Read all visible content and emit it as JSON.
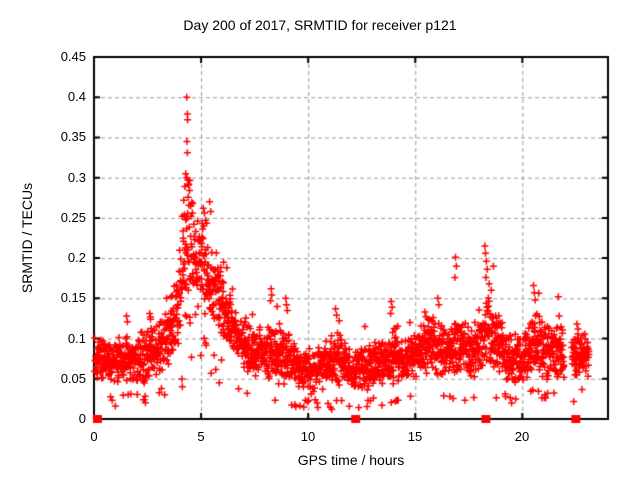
{
  "title": "Day 200 of 2017, SRMTID for receiver p121",
  "chart_data": {
    "type": "scatter",
    "title": "Day 200 of 2017, SRMTID for receiver p121",
    "xlabel": "GPS time / hours",
    "ylabel": "SRMTID / TECUs",
    "xlim": [
      0,
      24
    ],
    "ylim": [
      0,
      0.45
    ],
    "xticks": [
      0,
      5,
      10,
      15,
      20
    ],
    "yticks": [
      0,
      0.05,
      0.1,
      0.15,
      0.2,
      0.25,
      0.3,
      0.35,
      0.4,
      0.45
    ],
    "xtick_labels": [
      "0",
      "5",
      "10",
      "15",
      "20"
    ],
    "ytick_labels": [
      "0",
      "0.05",
      "0.1",
      "0.15",
      "0.2",
      "0.25",
      "0.3",
      "0.35",
      "0.4",
      "0.45"
    ],
    "grid": true,
    "legend": "none",
    "marker": "plus",
    "marker_px": 7,
    "marker_color": "#ff0000",
    "grid_color": "#9b9b9b",
    "border_color": "#000000",
    "background": "#ffffff",
    "n_points": 2400,
    "seed": 20170200,
    "x_data_range": [
      0.03,
      23.12
    ],
    "gaps": [
      [
        21.95,
        22.3
      ],
      [
        23.12,
        24
      ]
    ],
    "zero_clusters_x": [
      0.16,
      12.22,
      18.3,
      22.5
    ],
    "envelope": [
      [
        0.0,
        0.045,
        0.1
      ],
      [
        0.7,
        0.04,
        0.095
      ],
      [
        1.3,
        0.038,
        0.105
      ],
      [
        1.8,
        0.04,
        0.1
      ],
      [
        2.3,
        0.042,
        0.11
      ],
      [
        3.0,
        0.048,
        0.12
      ],
      [
        3.5,
        0.06,
        0.14
      ],
      [
        3.9,
        0.075,
        0.185
      ],
      [
        4.2,
        0.095,
        0.27
      ],
      [
        4.45,
        0.115,
        0.31
      ],
      [
        4.7,
        0.125,
        0.255
      ],
      [
        5.0,
        0.13,
        0.25
      ],
      [
        5.3,
        0.125,
        0.245
      ],
      [
        5.6,
        0.11,
        0.215
      ],
      [
        6.0,
        0.09,
        0.19
      ],
      [
        6.5,
        0.072,
        0.155
      ],
      [
        7.0,
        0.06,
        0.125
      ],
      [
        7.6,
        0.05,
        0.11
      ],
      [
        8.2,
        0.045,
        0.12
      ],
      [
        8.6,
        0.04,
        0.11
      ],
      [
        9.1,
        0.035,
        0.115
      ],
      [
        9.6,
        0.03,
        0.09
      ],
      [
        10.2,
        0.03,
        0.085
      ],
      [
        10.8,
        0.032,
        0.095
      ],
      [
        11.4,
        0.038,
        0.115
      ],
      [
        11.9,
        0.032,
        0.085
      ],
      [
        12.4,
        0.033,
        0.088
      ],
      [
        13.0,
        0.035,
        0.095
      ],
      [
        13.6,
        0.038,
        0.1
      ],
      [
        14.0,
        0.04,
        0.11
      ],
      [
        14.5,
        0.04,
        0.1
      ],
      [
        15.0,
        0.045,
        0.11
      ],
      [
        15.5,
        0.048,
        0.125
      ],
      [
        16.0,
        0.05,
        0.13
      ],
      [
        16.5,
        0.045,
        0.12
      ],
      [
        17.0,
        0.05,
        0.13
      ],
      [
        17.5,
        0.045,
        0.115
      ],
      [
        18.0,
        0.05,
        0.13
      ],
      [
        18.4,
        0.058,
        0.16
      ],
      [
        18.8,
        0.052,
        0.135
      ],
      [
        19.3,
        0.042,
        0.11
      ],
      [
        19.8,
        0.04,
        0.105
      ],
      [
        20.3,
        0.046,
        0.115
      ],
      [
        20.7,
        0.05,
        0.135
      ],
      [
        21.2,
        0.045,
        0.115
      ],
      [
        21.7,
        0.048,
        0.12
      ],
      [
        22.4,
        0.042,
        0.105
      ],
      [
        22.9,
        0.048,
        0.11
      ],
      [
        23.12,
        0.05,
        0.095
      ]
    ],
    "extra_points": [
      [
        4.33,
        0.4
      ],
      [
        4.36,
        0.379
      ],
      [
        4.37,
        0.372
      ],
      [
        4.34,
        0.345
      ],
      [
        4.36,
        0.331
      ],
      [
        4.28,
        0.305
      ],
      [
        4.33,
        0.3
      ],
      [
        4.38,
        0.297
      ],
      [
        4.24,
        0.289
      ],
      [
        4.42,
        0.291
      ],
      [
        4.46,
        0.284
      ],
      [
        4.19,
        0.272
      ],
      [
        4.52,
        0.265
      ],
      [
        4.12,
        0.252
      ],
      [
        5.1,
        0.262
      ],
      [
        5.16,
        0.256
      ],
      [
        5.21,
        0.247
      ],
      [
        5.06,
        0.243
      ],
      [
        5.4,
        0.27
      ],
      [
        5.45,
        0.258
      ],
      [
        6.05,
        0.195
      ],
      [
        6.2,
        0.188
      ],
      [
        1.52,
        0.128
      ],
      [
        1.56,
        0.121
      ],
      [
        2.6,
        0.131
      ],
      [
        2.64,
        0.124
      ],
      [
        3.6,
        0.152
      ],
      [
        3.75,
        0.165
      ],
      [
        8.27,
        0.162
      ],
      [
        8.3,
        0.154
      ],
      [
        8.24,
        0.147
      ],
      [
        8.55,
        0.14
      ],
      [
        8.95,
        0.15
      ],
      [
        8.99,
        0.142
      ],
      [
        9.03,
        0.135
      ],
      [
        11.28,
        0.137
      ],
      [
        11.33,
        0.129
      ],
      [
        11.45,
        0.122
      ],
      [
        13.88,
        0.146
      ],
      [
        13.92,
        0.139
      ],
      [
        13.85,
        0.131
      ],
      [
        15.45,
        0.133
      ],
      [
        15.5,
        0.127
      ],
      [
        16.05,
        0.15
      ],
      [
        16.1,
        0.142
      ],
      [
        16.88,
        0.201
      ],
      [
        16.92,
        0.19
      ],
      [
        16.85,
        0.176
      ],
      [
        18.25,
        0.215
      ],
      [
        18.28,
        0.206
      ],
      [
        18.32,
        0.196
      ],
      [
        18.36,
        0.186
      ],
      [
        18.3,
        0.176
      ],
      [
        18.45,
        0.168
      ],
      [
        18.55,
        0.16
      ],
      [
        18.65,
        0.19
      ],
      [
        20.52,
        0.166
      ],
      [
        20.56,
        0.157
      ],
      [
        20.6,
        0.148
      ],
      [
        21.68,
        0.152
      ],
      [
        21.72,
        0.128
      ],
      [
        7.4,
        0.13
      ],
      [
        12.65,
        0.115
      ],
      [
        14.75,
        0.12
      ],
      [
        22.55,
        0.118
      ],
      [
        22.6,
        0.112
      ],
      [
        23.05,
        0.095
      ]
    ],
    "low_outliers": [
      [
        2.35,
        0.024
      ],
      [
        3.3,
        0.03
      ],
      [
        5.85,
        0.045
      ],
      [
        7.15,
        0.032
      ],
      [
        9.38,
        0.018
      ],
      [
        10.42,
        0.02
      ],
      [
        11.1,
        0.012
      ],
      [
        11.92,
        0.016
      ],
      [
        13.05,
        0.026
      ],
      [
        14.08,
        0.022
      ],
      [
        16.62,
        0.028
      ],
      [
        19.5,
        0.02
      ],
      [
        20.92,
        0.026
      ],
      [
        21.05,
        0.03
      ]
    ]
  }
}
